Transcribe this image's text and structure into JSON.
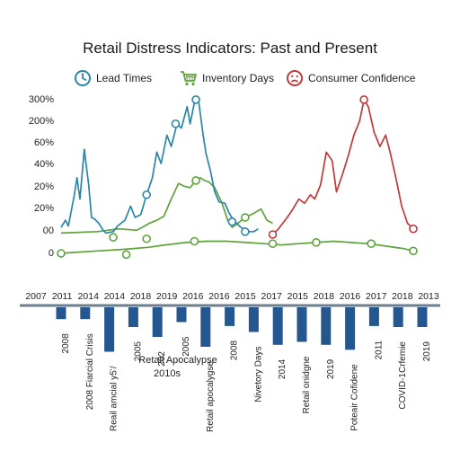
{
  "chart_data": {
    "type": "line",
    "title": "Retail Distress Indicators: Past and Present",
    "legend": [
      {
        "label": "Lead Times",
        "icon": "clock-icon",
        "color": "#2a86a8"
      },
      {
        "label": "Inventory Days",
        "icon": "shopping-cart-icon",
        "color": "#5ea33c"
      },
      {
        "label": "Consumer Confidence",
        "icon": "sad-face-icon",
        "color": "#c0393b"
      }
    ],
    "legend_placement": "top",
    "grid": false,
    "y_tick_labels": [
      "300%",
      "200%",
      "60%",
      "40%",
      "20%",
      "20%",
      "00",
      "0"
    ],
    "series": [
      {
        "name": "Lead Times",
        "color": "#2a86a8",
        "points": [
          [
            0,
            5
          ],
          [
            0.03,
            10
          ],
          [
            0.05,
            6
          ],
          [
            0.09,
            27
          ],
          [
            0.11,
            40
          ],
          [
            0.12,
            32
          ],
          [
            0.13,
            25
          ],
          [
            0.16,
            60
          ],
          [
            0.19,
            35
          ],
          [
            0.21,
            12
          ],
          [
            0.23,
            11
          ],
          [
            0.26,
            8
          ],
          [
            0.29,
            3
          ],
          [
            0.31,
            1
          ],
          [
            0.36,
            2
          ],
          [
            0.39,
            6
          ],
          [
            0.44,
            10
          ],
          [
            0.48,
            20
          ],
          [
            0.51,
            12
          ],
          [
            0.55,
            14
          ],
          [
            0.59,
            28
          ],
          [
            0.63,
            40
          ],
          [
            0.66,
            58
          ],
          [
            0.69,
            50
          ],
          [
            0.73,
            70
          ],
          [
            0.76,
            62
          ],
          [
            0.8,
            78
          ],
          [
            0.83,
            75
          ],
          [
            0.87,
            90
          ],
          [
            0.89,
            78
          ],
          [
            0.92,
            93
          ],
          [
            0.93,
            95
          ],
          [
            0.95,
            93
          ],
          [
            0.98,
            70
          ],
          [
            1.0,
            57
          ],
          [
            1.03,
            45
          ],
          [
            1.06,
            30
          ],
          [
            1.09,
            23
          ],
          [
            1.13,
            22
          ],
          [
            1.16,
            15
          ],
          [
            1.19,
            10
          ],
          [
            1.23,
            6
          ],
          [
            1.28,
            2
          ],
          [
            1.33,
            2
          ],
          [
            1.36,
            4
          ]
        ],
        "markers": [
          [
            0.59,
            28
          ],
          [
            0.79,
            78
          ],
          [
            0.93,
            95
          ],
          [
            1.18,
            9
          ],
          [
            1.27,
            2
          ]
        ]
      },
      {
        "name": "Inventory Days",
        "color": "#5ea33c",
        "points": [
          [
            0,
            1
          ],
          [
            0.25,
            2
          ],
          [
            0.4,
            4
          ],
          [
            0.52,
            3
          ],
          [
            0.56,
            5
          ],
          [
            0.61,
            8
          ],
          [
            0.66,
            10
          ],
          [
            0.71,
            13
          ],
          [
            0.76,
            25
          ],
          [
            0.81,
            36
          ],
          [
            0.85,
            34
          ],
          [
            0.89,
            33
          ],
          [
            0.93,
            38
          ],
          [
            0.96,
            40
          ],
          [
            0.99,
            38
          ],
          [
            1.02,
            37
          ],
          [
            1.06,
            33
          ],
          [
            1.11,
            22
          ],
          [
            1.15,
            10
          ],
          [
            1.18,
            5
          ],
          [
            1.22,
            8
          ],
          [
            1.27,
            12
          ],
          [
            1.33,
            15
          ],
          [
            1.38,
            18
          ],
          [
            1.42,
            10
          ],
          [
            1.46,
            8
          ]
        ],
        "markers": [
          [
            0.36,
            -2
          ],
          [
            0.59,
            -3
          ],
          [
            0.93,
            38
          ],
          [
            1.27,
            12
          ]
        ]
      },
      {
        "name": "Consumer Confidence",
        "color": "#c0393b",
        "points": [
          [
            1.46,
            0
          ],
          [
            1.5,
            4
          ],
          [
            1.53,
            8
          ],
          [
            1.56,
            12
          ],
          [
            1.6,
            18
          ],
          [
            1.64,
            25
          ],
          [
            1.68,
            22
          ],
          [
            1.72,
            28
          ],
          [
            1.75,
            25
          ],
          [
            1.79,
            35
          ],
          [
            1.83,
            58
          ],
          [
            1.87,
            52
          ],
          [
            1.9,
            30
          ],
          [
            1.94,
            42
          ],
          [
            1.98,
            55
          ],
          [
            2.02,
            70
          ],
          [
            2.06,
            80
          ],
          [
            2.09,
            95
          ],
          [
            2.12,
            90
          ],
          [
            2.16,
            72
          ],
          [
            2.2,
            62
          ],
          [
            2.24,
            70
          ],
          [
            2.27,
            58
          ],
          [
            2.31,
            40
          ],
          [
            2.35,
            20
          ],
          [
            2.39,
            8
          ],
          [
            2.43,
            4
          ]
        ],
        "markers": [
          [
            1.46,
            0
          ],
          [
            2.09,
            95
          ],
          [
            2.43,
            4
          ]
        ]
      }
    ],
    "lower_series": {
      "name": "Inventory Days",
      "color": "#5ea33c",
      "points": [
        [
          0,
          0
        ],
        [
          0.12,
          1
        ],
        [
          0.25,
          2
        ],
        [
          0.4,
          3
        ],
        [
          0.5,
          4
        ],
        [
          0.6,
          5
        ],
        [
          0.72,
          7
        ],
        [
          0.86,
          9
        ],
        [
          1.0,
          10
        ],
        [
          1.14,
          10
        ],
        [
          1.28,
          9
        ],
        [
          1.4,
          8
        ],
        [
          1.52,
          7
        ],
        [
          1.64,
          8
        ],
        [
          1.76,
          9
        ],
        [
          1.88,
          10
        ],
        [
          2.0,
          9
        ],
        [
          2.12,
          8
        ],
        [
          2.24,
          6
        ],
        [
          2.36,
          4
        ],
        [
          2.43,
          2
        ]
      ],
      "markers": [
        [
          0.0,
          0
        ],
        [
          0.45,
          -1
        ],
        [
          0.92,
          10
        ],
        [
          1.46,
          8
        ],
        [
          1.76,
          9
        ],
        [
          2.14,
          8
        ],
        [
          2.43,
          2
        ]
      ]
    },
    "timeline": {
      "years_top": [
        "2007",
        "2011",
        "2014",
        "2014",
        "2018",
        "2019",
        "2016",
        "2016",
        "2015",
        "2017",
        "2015",
        "2018",
        "2016",
        "2017",
        "2018",
        "2013"
      ],
      "bars": [
        {
          "value": 1.2,
          "label": "2008"
        },
        {
          "value": 1.2,
          "label": "2008 Fiarcial Crisis"
        },
        {
          "value": 4.5,
          "label": "Reail amcial y5'/"
        },
        {
          "value": 2.0,
          "label": "2005"
        },
        {
          "value": 3.0,
          "label": "202"
        },
        {
          "value": 1.5,
          "label": "2005"
        },
        {
          "value": 4.0,
          "label": "Retail apocalygse"
        },
        {
          "value": 1.9,
          "label": "2008"
        },
        {
          "value": 2.5,
          "label": "Nivetory Days"
        },
        {
          "value": 3.8,
          "label": "2014"
        },
        {
          "value": 3.5,
          "label": "Retail onidgne"
        },
        {
          "value": 3.8,
          "label": "2019"
        },
        {
          "value": 4.3,
          "label": "Poteair Cofidene"
        },
        {
          "value": 1.9,
          "label": "2011"
        },
        {
          "value": 2.0,
          "label": "COVID-1Crfemie"
        },
        {
          "value": 2.0,
          "label": "2019"
        }
      ],
      "annotation_line1": "Retail Apocalypse",
      "annotation_line2": "2010s"
    }
  },
  "colors": {
    "lead": "#2a86a8",
    "inventory": "#5ea33c",
    "confidence": "#c0393b",
    "bar": "#24578f",
    "text": "#222222"
  }
}
